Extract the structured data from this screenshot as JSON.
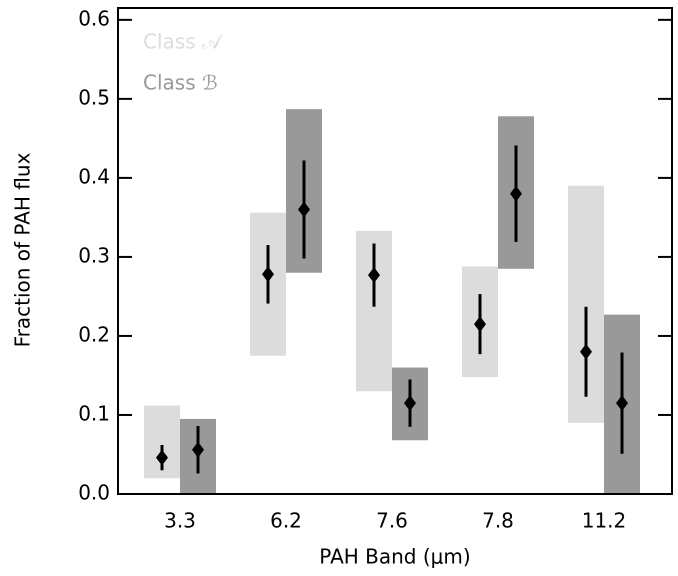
{
  "chart_data": {
    "type": "range_errorbar",
    "x_label": "PAH Band (μm)",
    "y_label": "Fraction of PAH flux",
    "categories": [
      "3.3",
      "6.2",
      "7.6",
      "7.8",
      "11.2"
    ],
    "ylim": [
      0,
      0.615
    ],
    "yticks": [
      {
        "value": 0,
        "label": "0.0"
      },
      0.1,
      0.2,
      0.3,
      0.4,
      0.5,
      0.6
    ],
    "legend": "upper left",
    "series": [
      {
        "name": "Class 𝒜",
        "color": "#dcdcdc",
        "range_low": [
          0.02,
          0.175,
          0.13,
          0.148,
          0.09
        ],
        "range_high": [
          0.112,
          0.356,
          0.333,
          0.288,
          0.39
        ],
        "values": [
          0.046,
          0.278,
          0.277,
          0.215,
          0.18
        ],
        "errors": [
          0.016,
          0.037,
          0.04,
          0.038,
          0.057
        ]
      },
      {
        "name": "Class ℬ",
        "color": "#999999",
        "range_low": [
          0,
          0.28,
          0.068,
          0.285,
          0
        ],
        "range_high": [
          0.095,
          0.487,
          0.16,
          0.478,
          0.227
        ],
        "values": [
          0.056,
          0.36,
          0.115,
          0.38,
          0.115
        ],
        "errors": [
          0.03,
          0.062,
          0.03,
          0.061,
          0.064
        ]
      }
    ]
  }
}
